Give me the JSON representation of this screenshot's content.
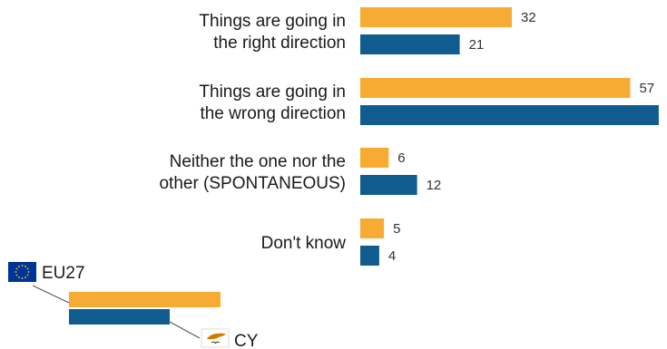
{
  "colors": {
    "eu27": "#f8ab33",
    "cy": "#115c8e",
    "eu_flag_blue": "#003399",
    "eu_star": "#ffcc00",
    "cy_copper": "#d57800",
    "cy_leaf": "#4e5b31"
  },
  "legend": {
    "eu27_label": "EU27",
    "cy_label": "CY",
    "eu27_icon": "eu-flag-icon",
    "cy_icon": "cyprus-flag-icon"
  },
  "chart_data": {
    "type": "bar",
    "orientation": "horizontal",
    "categories": [
      [
        "Things are going in",
        "the right direction"
      ],
      [
        "Things are going in",
        "the wrong direction"
      ],
      [
        "Neither the one nor the",
        "other (SPONTANEOUS)"
      ],
      [
        "Don't know"
      ]
    ],
    "series": [
      {
        "name": "EU27",
        "values": [
          32,
          57,
          6,
          5
        ]
      },
      {
        "name": "CY",
        "values": [
          21,
          63,
          12,
          4
        ]
      }
    ],
    "xlim": [
      0,
      63
    ],
    "grid": false,
    "legend_position": "bottom-left"
  }
}
